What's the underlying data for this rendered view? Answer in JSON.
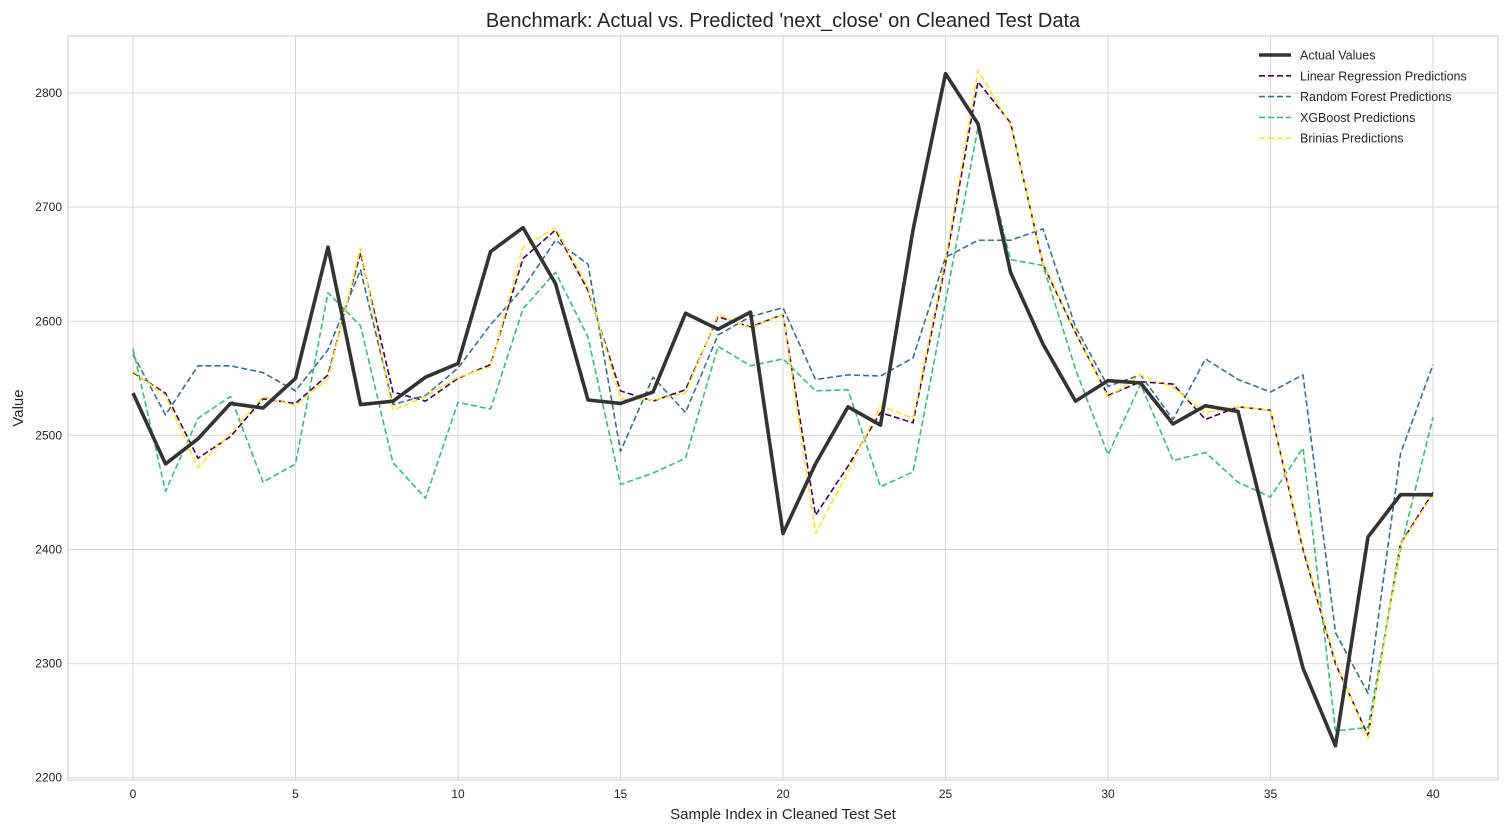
{
  "chart_data": {
    "type": "line",
    "title": "Benchmark: Actual vs. Predicted 'next_close' on Cleaned Test Data",
    "xlabel": "Sample Index in Cleaned Test Set",
    "ylabel": "Value",
    "xlim": [
      -2,
      42
    ],
    "ylim": [
      2198,
      2850
    ],
    "xticks": [
      0,
      5,
      10,
      15,
      20,
      25,
      30,
      35,
      40
    ],
    "yticks": [
      2200,
      2300,
      2400,
      2500,
      2600,
      2700,
      2800
    ],
    "grid": true,
    "legend_position": "top-right",
    "x": [
      0,
      1,
      2,
      3,
      4,
      5,
      6,
      7,
      8,
      9,
      10,
      11,
      12,
      13,
      14,
      15,
      16,
      17,
      18,
      19,
      20,
      21,
      22,
      23,
      24,
      25,
      26,
      27,
      28,
      29,
      30,
      31,
      32,
      33,
      34,
      35,
      36,
      37,
      38,
      39,
      40
    ],
    "series": [
      {
        "name": "Actual Values",
        "color": "#333333",
        "style": "solid",
        "values": [
          2537,
          2475,
          2497,
          2528,
          2524,
          2550,
          2665,
          2527,
          2530,
          2551,
          2563,
          2661,
          2682,
          2633,
          2531,
          2528,
          2538,
          2607,
          2593,
          2608,
          2414,
          2475,
          2525,
          2509,
          2680,
          2817,
          2773,
          2643,
          2580,
          2530,
          2548,
          2546,
          2510,
          2526,
          2521,
          2407,
          2296,
          2228,
          2411,
          2448,
          2448
        ]
      },
      {
        "name": "Linear Regression Predictions",
        "color": "#440154",
        "style": "dashed",
        "values": [
          2555,
          2537,
          2480,
          2499,
          2532,
          2528,
          2553,
          2660,
          2538,
          2530,
          2550,
          2562,
          2655,
          2680,
          2627,
          2539,
          2530,
          2540,
          2604,
          2595,
          2606,
          2430,
          2473,
          2520,
          2511,
          2650,
          2810,
          2774,
          2650,
          2590,
          2535,
          2547,
          2545,
          2514,
          2525,
          2522,
          2400,
          2300,
          2237,
          2405,
          2450
        ]
      },
      {
        "name": "Random Forest Predictions",
        "color": "#3b6f96",
        "style": "dashed",
        "values": [
          2571,
          2518,
          2561,
          2561,
          2555,
          2539,
          2575,
          2645,
          2527,
          2535,
          2559,
          2597,
          2629,
          2671,
          2650,
          2486,
          2551,
          2520,
          2588,
          2604,
          2612,
          2549,
          2553,
          2552,
          2568,
          2656,
          2671,
          2671,
          2681,
          2595,
          2543,
          2553,
          2514,
          2567,
          2549,
          2538,
          2553,
          2327,
          2274,
          2484,
          2562
        ]
      },
      {
        "name": "XGBoost Predictions",
        "color": "#3dbc74",
        "style": "dashed",
        "values": [
          2576,
          2451,
          2515,
          2534,
          2459,
          2475,
          2625,
          2596,
          2476,
          2445,
          2529,
          2523,
          2611,
          2643,
          2586,
          2457,
          2467,
          2480,
          2578,
          2561,
          2567,
          2539,
          2540,
          2455,
          2468,
          2617,
          2770,
          2654,
          2649,
          2558,
          2483,
          2545,
          2478,
          2485,
          2459,
          2446,
          2489,
          2241,
          2244,
          2400,
          2516
        ]
      },
      {
        "name": "Brinias Predictions",
        "color": "#fde725",
        "style": "dashed",
        "values": [
          2556,
          2535,
          2472,
          2502,
          2534,
          2526,
          2550,
          2664,
          2522,
          2534,
          2551,
          2560,
          2665,
          2682,
          2630,
          2532,
          2531,
          2537,
          2606,
          2594,
          2606,
          2414,
          2468,
          2526,
          2515,
          2654,
          2820,
          2772,
          2651,
          2592,
          2533,
          2553,
          2542,
          2520,
          2525,
          2522,
          2403,
          2302,
          2234,
          2404,
          2448
        ]
      }
    ]
  }
}
